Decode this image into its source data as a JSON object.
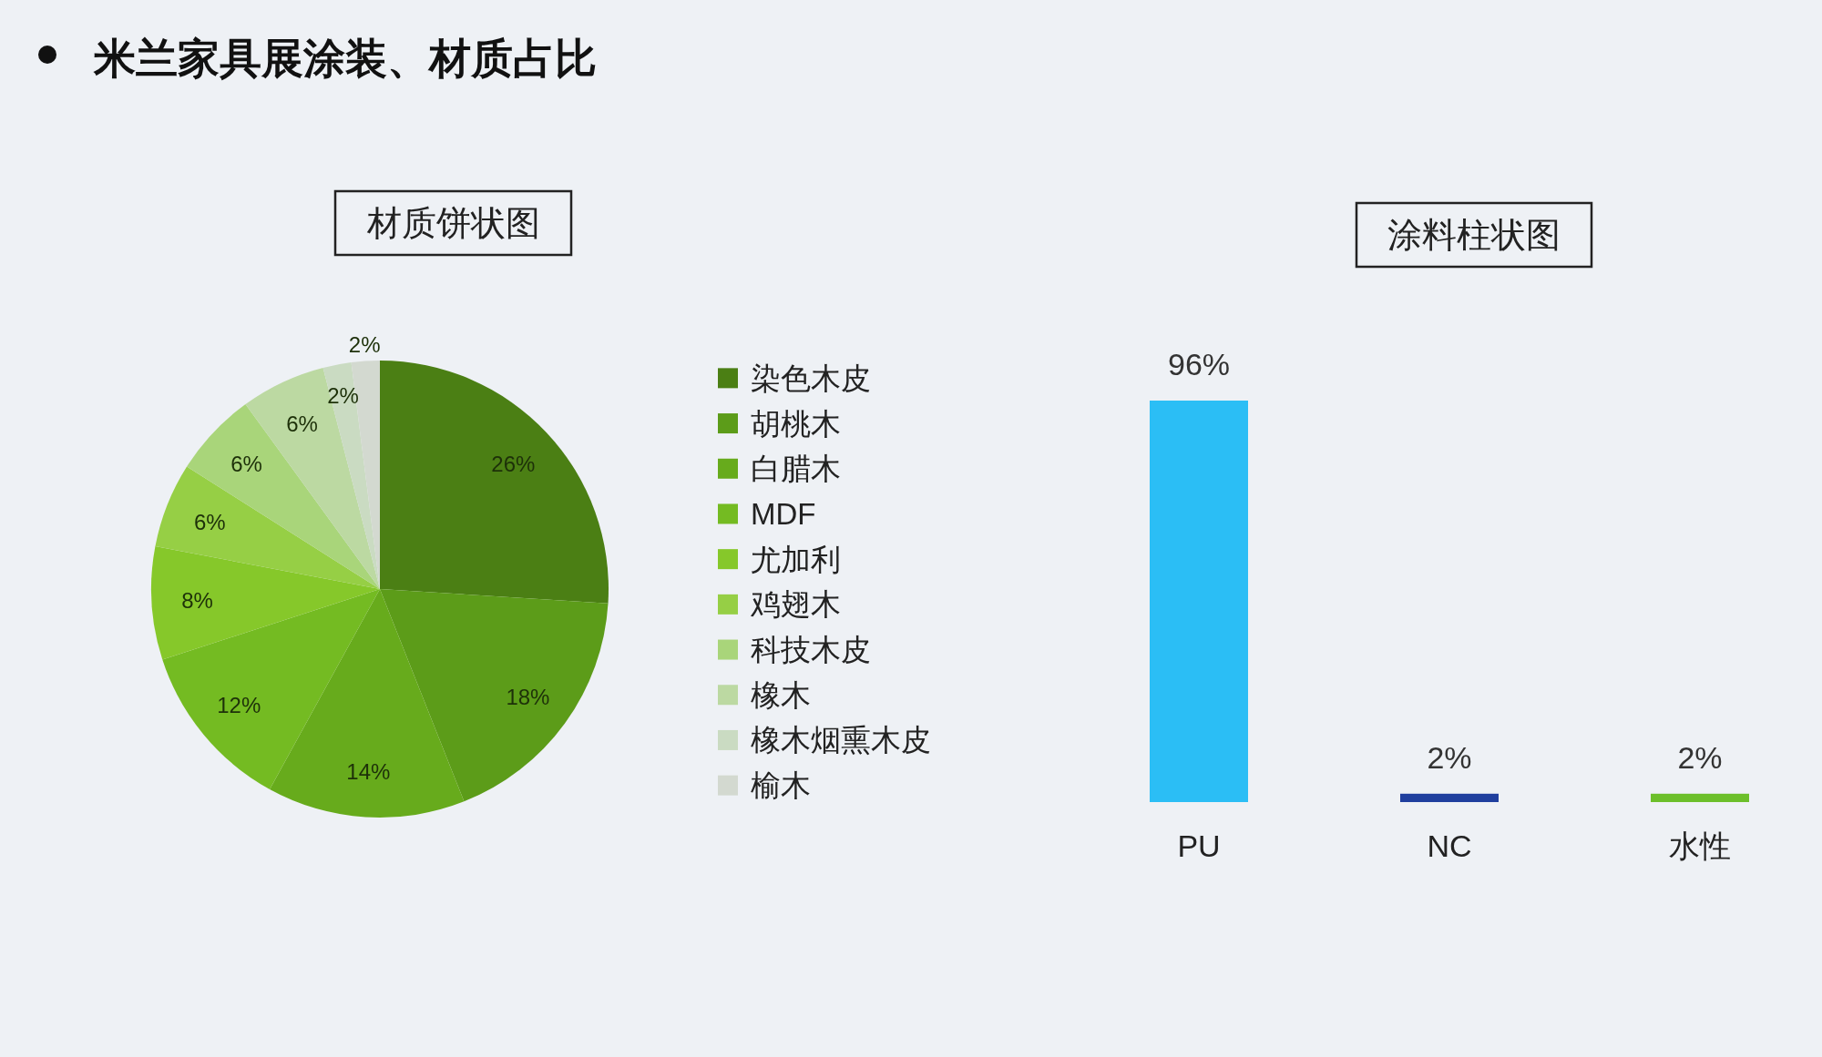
{
  "chart_data": [
    {
      "type": "pie",
      "title": "米兰家具展涂装、材质占比",
      "subtitle": "材质饼状图",
      "categories": [
        "染色木皮",
        "胡桃木",
        "白腊木",
        "MDF",
        "尤加利",
        "鸡翅木",
        "科技木皮",
        "橡木",
        "橡木烟熏木皮",
        "榆木"
      ],
      "values": [
        26,
        18,
        14,
        12,
        8,
        6,
        6,
        6,
        2,
        2
      ],
      "value_labels": [
        "26%",
        "18%",
        "14%",
        "12%",
        "8%",
        "6%",
        "6%",
        "6%",
        "2%",
        "2%"
      ],
      "colors": [
        "#4b7f14",
        "#5c9c19",
        "#67ab1c",
        "#74bb22",
        "#86c82a",
        "#96cf45",
        "#a9d57a",
        "#bcd9a2",
        "#cadbc2",
        "#d3d9d0"
      ],
      "legend": "right"
    },
    {
      "type": "bar",
      "subtitle": "涂料柱状图",
      "categories": [
        "PU",
        "NC",
        "水性"
      ],
      "values": [
        96,
        2,
        2
      ],
      "value_labels": [
        "96%",
        "2%",
        "2%"
      ],
      "colors": [
        "#2bbef5",
        "#1f3f9e",
        "#6cbf2a"
      ]
    }
  ]
}
